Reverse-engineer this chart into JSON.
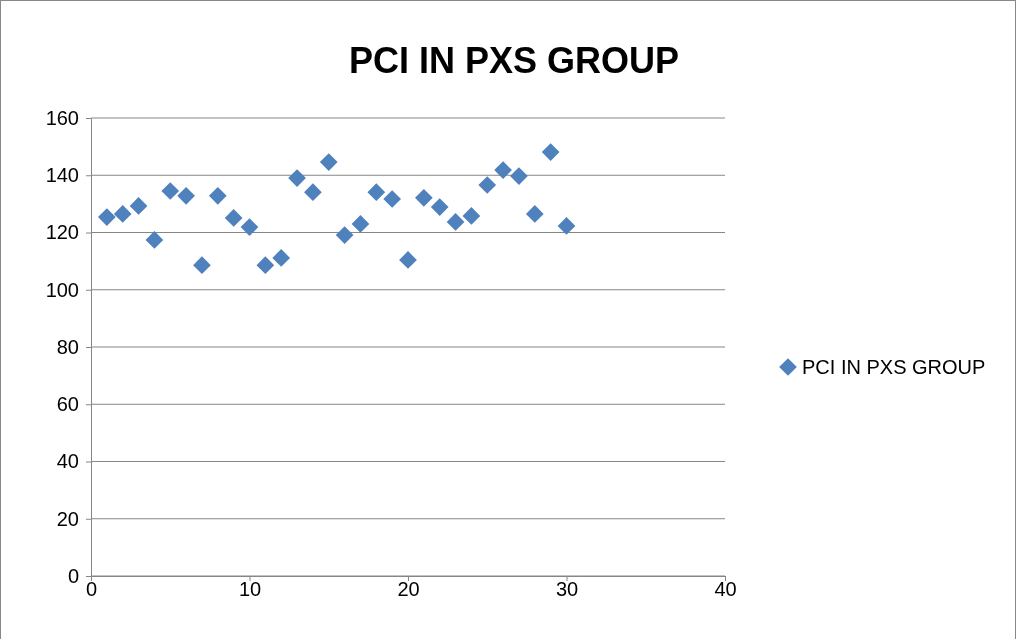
{
  "chart_data": {
    "type": "scatter",
    "title": "PCI IN PXS GROUP",
    "x": [
      1,
      2,
      3,
      4,
      5,
      6,
      7,
      8,
      9,
      10,
      11,
      12,
      13,
      14,
      15,
      16,
      17,
      18,
      19,
      20,
      21,
      22,
      23,
      24,
      25,
      26,
      27,
      28,
      29,
      30
    ],
    "series": [
      {
        "name": "PCI IN PXS GROUP",
        "color": "#4f81bd",
        "values": [
          125.4,
          126.5,
          129.3,
          117.4,
          134.5,
          132.8,
          108.6,
          132.8,
          125.1,
          121.9,
          108.6,
          111.1,
          139,
          134.1,
          144.6,
          119.1,
          123,
          134.1,
          131.7,
          110.4,
          132.1,
          128.9,
          123.7,
          125.8,
          136.6,
          141.8,
          139.7,
          126.5,
          148.1,
          122.3
        ]
      }
    ],
    "xlim": [
      0,
      40
    ],
    "xticks": [
      0,
      10,
      20,
      30,
      40
    ],
    "ylim": [
      0,
      160
    ],
    "yticks": [
      0,
      20,
      40,
      60,
      80,
      100,
      120,
      140,
      160
    ],
    "grid": "y",
    "legend": "right",
    "marker": "diamond"
  }
}
